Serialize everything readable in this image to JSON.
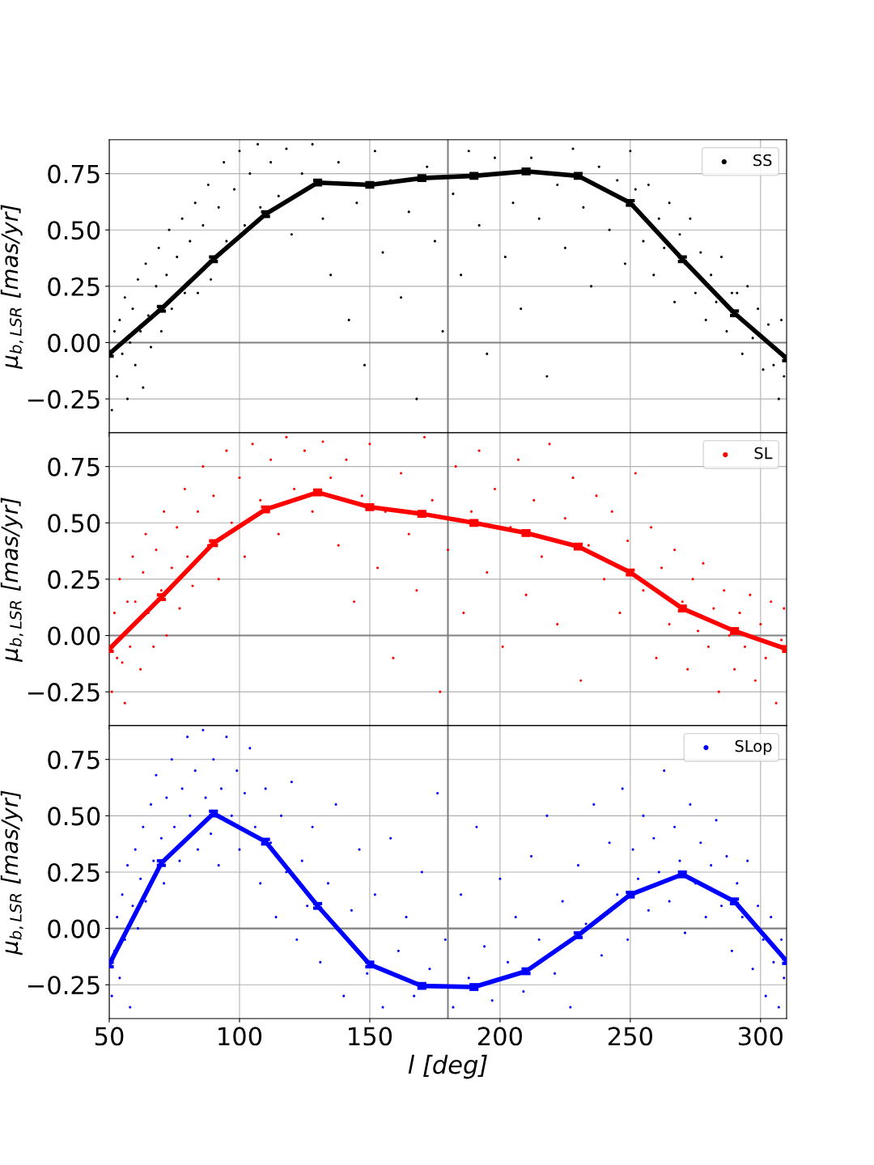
{
  "chart_data": [
    {
      "type": "scatter",
      "ylabel": "μ$_{b,LSR}$ [mas/yr]",
      "xlim": [
        50,
        310
      ],
      "xticks": [
        50,
        100,
        150,
        200,
        250,
        300
      ],
      "ylim": [
        -0.4,
        0.9
      ],
      "yticks": [
        {
          "value": -0.25,
          "label": "−0.25"
        },
        {
          "value": 0,
          "label": "0.00"
        },
        {
          "value": 0.25,
          "label": "0.25"
        },
        {
          "value": 0.5,
          "label": "0.50"
        },
        {
          "value": 0.75,
          "label": "0.75"
        }
      ],
      "tick_labels": "y",
      "grid": true,
      "legend": "top right",
      "ref_lines": [
        {
          "axis": "x",
          "value": 180,
          "color": "#808080"
        },
        {
          "axis": "y",
          "value": 0,
          "color": "#808080"
        }
      ],
      "series": [
        {
          "name": "SS",
          "color": "#000000",
          "x": [
            51,
            52,
            53,
            54,
            55,
            56,
            57,
            58,
            59,
            60,
            61,
            62,
            63,
            64,
            65,
            66,
            68,
            69,
            70,
            72,
            73,
            74,
            76,
            78,
            79,
            81,
            83,
            84,
            86,
            88,
            89,
            92,
            94,
            95,
            98,
            100,
            102,
            104,
            107,
            108,
            112,
            115,
            118,
            120,
            124,
            128,
            132,
            135,
            138,
            142,
            145,
            148,
            152,
            155,
            158,
            162,
            165,
            168,
            172,
            175,
            178,
            182,
            185,
            188,
            192,
            195,
            198,
            202,
            205,
            208,
            212,
            215,
            218,
            222,
            225,
            228,
            232,
            235,
            238,
            242,
            245,
            248,
            250,
            252,
            255,
            257,
            259,
            261,
            263,
            265,
            267,
            269,
            271,
            273,
            275,
            277,
            279,
            281,
            283,
            285,
            287,
            289,
            291,
            293,
            295,
            297,
            299,
            301,
            303,
            305,
            307,
            308,
            309
          ],
          "values": [
            -0.3,
            0.05,
            -0.15,
            0.1,
            -0.05,
            0.2,
            -0.25,
            0.0,
            0.15,
            -0.1,
            0.28,
            0.05,
            -0.2,
            0.35,
            0.12,
            -0.02,
            0.25,
            0.42,
            0.05,
            0.3,
            0.5,
            0.15,
            0.38,
            0.55,
            0.22,
            0.45,
            0.62,
            0.22,
            0.52,
            0.7,
            0.28,
            0.6,
            0.8,
            0.45,
            0.68,
            0.85,
            0.52,
            0.75,
            0.88,
            0.6,
            0.8,
            0.65,
            0.86,
            0.48,
            0.75,
            0.88,
            0.55,
            0.3,
            0.8,
            0.1,
            0.62,
            -0.1,
            0.85,
            0.4,
            0.72,
            0.2,
            0.58,
            -0.25,
            0.78,
            0.45,
            0.05,
            0.66,
            0.3,
            0.85,
            0.52,
            -0.05,
            0.82,
            0.38,
            0.62,
            0.15,
            0.82,
            0.55,
            -0.15,
            0.7,
            0.42,
            0.86,
            0.6,
            0.25,
            0.78,
            0.5,
            0.72,
            0.35,
            0.85,
            0.68,
            0.45,
            0.7,
            0.3,
            0.55,
            0.42,
            0.62,
            0.18,
            0.48,
            0.35,
            0.55,
            0.22,
            0.4,
            0.1,
            0.3,
            0.18,
            0.38,
            0.05,
            0.22,
            0.22,
            -0.05,
            0.25,
            0.02,
            0.15,
            -0.12,
            0.08,
            -0.1,
            -0.25,
            0.1,
            -0.15
          ]
        },
        {
          "type": "line",
          "color": "#000000",
          "x": [
            50,
            70,
            90,
            110,
            130,
            150,
            170,
            190,
            210,
            230,
            250,
            270,
            290,
            310
          ],
          "values": [
            -0.05,
            0.15,
            0.37,
            0.57,
            0.71,
            0.7,
            0.73,
            0.74,
            0.76,
            0.74,
            0.62,
            0.37,
            0.13,
            -0.07
          ],
          "errors": [
            0.01,
            0.01,
            0.01,
            0.01,
            0.01,
            0.01,
            0.01,
            0.01,
            0.01,
            0.01,
            0.01,
            0.01,
            0.01,
            0.01
          ]
        }
      ]
    },
    {
      "type": "scatter",
      "ylabel": "μ$_{b,LSR}$ [mas/yr]",
      "xlim": [
        50,
        310
      ],
      "xticks": [
        50,
        100,
        150,
        200,
        250,
        300
      ],
      "ylim": [
        -0.4,
        0.9
      ],
      "yticks": [
        {
          "value": -0.25,
          "label": "−0.25"
        },
        {
          "value": 0,
          "label": "0.00"
        },
        {
          "value": 0.25,
          "label": "0.25"
        },
        {
          "value": 0.5,
          "label": "0.50"
        },
        {
          "value": 0.75,
          "label": "0.75"
        }
      ],
      "tick_labels": "y",
      "grid": true,
      "legend": "top right",
      "ref_lines": [
        {
          "axis": "x",
          "value": 180,
          "color": "#808080"
        },
        {
          "axis": "y",
          "value": 0,
          "color": "#808080"
        }
      ],
      "series": [
        {
          "name": "SL",
          "color": "#ff0000",
          "x": [
            51,
            52,
            53,
            54,
            55,
            56,
            57,
            58,
            59,
            60,
            62,
            63,
            64,
            65,
            67,
            68,
            70,
            71,
            72,
            74,
            76,
            77,
            79,
            80,
            82,
            84,
            86,
            88,
            90,
            92,
            95,
            97,
            100,
            102,
            105,
            108,
            112,
            115,
            118,
            121,
            125,
            128,
            132,
            135,
            138,
            141,
            144,
            147,
            150,
            153,
            156,
            159,
            162,
            165,
            168,
            171,
            174,
            177,
            180,
            183,
            186,
            189,
            192,
            195,
            198,
            201,
            204,
            207,
            210,
            213,
            216,
            219,
            222,
            225,
            228,
            231,
            234,
            237,
            240,
            243,
            246,
            249,
            252,
            255,
            258,
            260,
            262,
            265,
            267,
            270,
            272,
            274,
            276,
            278,
            280,
            282,
            284,
            286,
            288,
            290,
            292,
            294,
            296,
            298,
            300,
            302,
            304,
            306,
            308,
            309
          ],
          "values": [
            -0.25,
            0.1,
            -0.1,
            0.25,
            -0.12,
            -0.3,
            0.15,
            -0.05,
            0.35,
            0.15,
            -0.15,
            0.28,
            0.45,
            0.1,
            -0.05,
            0.38,
            0.2,
            0.55,
            0.0,
            0.3,
            0.48,
            0.12,
            0.65,
            0.35,
            0.22,
            0.55,
            0.75,
            0.4,
            0.62,
            0.25,
            0.82,
            0.5,
            0.7,
            0.35,
            0.85,
            0.6,
            0.78,
            0.45,
            0.88,
            0.65,
            0.82,
            0.55,
            0.86,
            0.7,
            0.4,
            0.78,
            0.15,
            0.62,
            0.85,
            0.3,
            0.55,
            -0.1,
            0.72,
            0.45,
            0.2,
            0.88,
            0.6,
            -0.25,
            0.38,
            0.75,
            0.1,
            0.55,
            0.82,
            0.28,
            0.65,
            -0.05,
            0.48,
            0.78,
            0.18,
            0.6,
            0.35,
            0.85,
            0.05,
            0.52,
            0.7,
            -0.2,
            0.4,
            0.62,
            0.25,
            0.55,
            0.1,
            0.42,
            0.72,
            0.2,
            0.48,
            -0.1,
            0.3,
            0.05,
            0.38,
            0.15,
            -0.15,
            0.25,
            0.02,
            0.32,
            -0.05,
            0.12,
            -0.25,
            0.2,
            0.0,
            -0.15,
            0.1,
            -0.05,
            0.18,
            -0.2,
            0.05,
            -0.1,
            0.15,
            -0.3,
            -0.02,
            0.12
          ]
        },
        {
          "type": "line",
          "color": "#ff0000",
          "x": [
            50,
            70,
            90,
            110,
            130,
            150,
            170,
            190,
            210,
            230,
            250,
            270,
            290,
            310
          ],
          "values": [
            -0.06,
            0.17,
            0.41,
            0.56,
            0.635,
            0.57,
            0.54,
            0.5,
            0.455,
            0.395,
            0.28,
            0.12,
            0.02,
            -0.06
          ],
          "errors": [
            0.01,
            0.01,
            0.01,
            0.01,
            0.01,
            0.01,
            0.01,
            0.01,
            0.01,
            0.01,
            0.01,
            0.01,
            0.01,
            0.01
          ]
        }
      ]
    },
    {
      "type": "scatter",
      "ylabel": "μ$_{b,LSR}$ [mas/yr]",
      "xlabel": "l [deg]",
      "xlim": [
        50,
        310
      ],
      "xticks": [
        50,
        100,
        150,
        200,
        250,
        300
      ],
      "ylim": [
        -0.4,
        0.9
      ],
      "yticks": [
        {
          "value": -0.25,
          "label": "−0.25"
        },
        {
          "value": 0,
          "label": "0.00"
        },
        {
          "value": 0.25,
          "label": "0.25"
        },
        {
          "value": 0.5,
          "label": "0.50"
        },
        {
          "value": 0.75,
          "label": "0.75"
        }
      ],
      "grid": true,
      "legend": "top right",
      "ref_lines": [
        {
          "axis": "x",
          "value": 180,
          "color": "#808080"
        },
        {
          "axis": "y",
          "value": 0,
          "color": "#808080"
        }
      ],
      "series": [
        {
          "name": "SLop",
          "color": "#0000ff",
          "x": [
            51,
            52,
            53,
            54,
            55,
            56,
            57,
            58,
            59,
            60,
            61,
            62,
            63,
            64,
            66,
            67,
            68,
            70,
            71,
            72,
            74,
            75,
            77,
            78,
            80,
            81,
            83,
            84,
            86,
            87,
            89,
            90,
            92,
            93,
            95,
            97,
            99,
            100,
            102,
            104,
            106,
            108,
            110,
            112,
            114,
            116,
            118,
            120,
            122,
            124,
            126,
            128,
            131,
            134,
            137,
            140,
            143,
            146,
            149,
            152,
            155,
            158,
            161,
            164,
            167,
            170,
            173,
            176,
            179,
            182,
            185,
            188,
            191,
            194,
            197,
            200,
            203,
            206,
            209,
            212,
            215,
            218,
            221,
            224,
            227,
            230,
            233,
            236,
            239,
            242,
            245,
            247,
            249,
            251,
            253,
            255,
            257,
            259,
            261,
            263,
            265,
            267,
            269,
            271,
            273,
            275,
            277,
            279,
            281,
            283,
            285,
            287,
            289,
            291,
            293,
            295,
            297,
            299,
            301,
            302,
            304,
            305,
            307,
            308,
            309
          ],
          "values": [
            -0.3,
            -0.1,
            0.05,
            -0.22,
            0.15,
            -0.05,
            0.28,
            -0.35,
            0.1,
            0.35,
            0.0,
            0.22,
            0.45,
            0.12,
            0.55,
            0.3,
            0.68,
            0.4,
            0.2,
            0.58,
            0.75,
            0.45,
            0.3,
            0.62,
            0.85,
            0.5,
            0.7,
            0.35,
            0.88,
            0.58,
            0.42,
            0.75,
            0.28,
            0.62,
            0.85,
            0.5,
            0.7,
            0.35,
            0.6,
            0.8,
            0.45,
            0.2,
            0.62,
            0.38,
            0.05,
            0.5,
            0.25,
            0.65,
            -0.05,
            0.3,
            0.1,
            0.45,
            -0.15,
            0.2,
            0.55,
            -0.3,
            0.08,
            0.35,
            -0.2,
            0.15,
            -0.35,
            0.4,
            -0.1,
            0.05,
            -0.3,
            0.25,
            -0.18,
            0.6,
            -0.05,
            -0.35,
            0.15,
            -0.22,
            0.45,
            -0.08,
            -0.32,
            0.22,
            -0.15,
            0.05,
            -0.28,
            0.32,
            -0.05,
            0.5,
            -0.2,
            0.12,
            -0.35,
            0.28,
            0.02,
            0.55,
            -0.12,
            0.38,
            0.15,
            0.62,
            -0.05,
            0.35,
            0.22,
            0.5,
            0.08,
            0.4,
            0.25,
            0.7,
            0.12,
            0.45,
            0.3,
            -0.02,
            0.55,
            0.2,
            0.38,
            0.05,
            0.28,
            0.48,
            0.1,
            0.32,
            -0.1,
            0.2,
            0.05,
            0.3,
            -0.18,
            0.1,
            -0.05,
            -0.3,
            0.05,
            -0.15,
            -0.35,
            -0.05,
            -0.22
          ]
        },
        {
          "type": "line",
          "color": "#0000ff",
          "x": [
            50,
            70,
            90,
            110,
            130,
            150,
            170,
            190,
            210,
            230,
            250,
            270,
            290,
            310
          ],
          "values": [
            -0.16,
            0.29,
            0.51,
            0.385,
            0.1,
            -0.16,
            -0.255,
            -0.26,
            -0.19,
            -0.03,
            0.15,
            0.24,
            0.12,
            -0.145
          ],
          "errors": [
            0.01,
            0.01,
            0.01,
            0.01,
            0.01,
            0.01,
            0.01,
            0.01,
            0.01,
            0.01,
            0.01,
            0.01,
            0.01,
            0.01
          ]
        }
      ]
    }
  ]
}
